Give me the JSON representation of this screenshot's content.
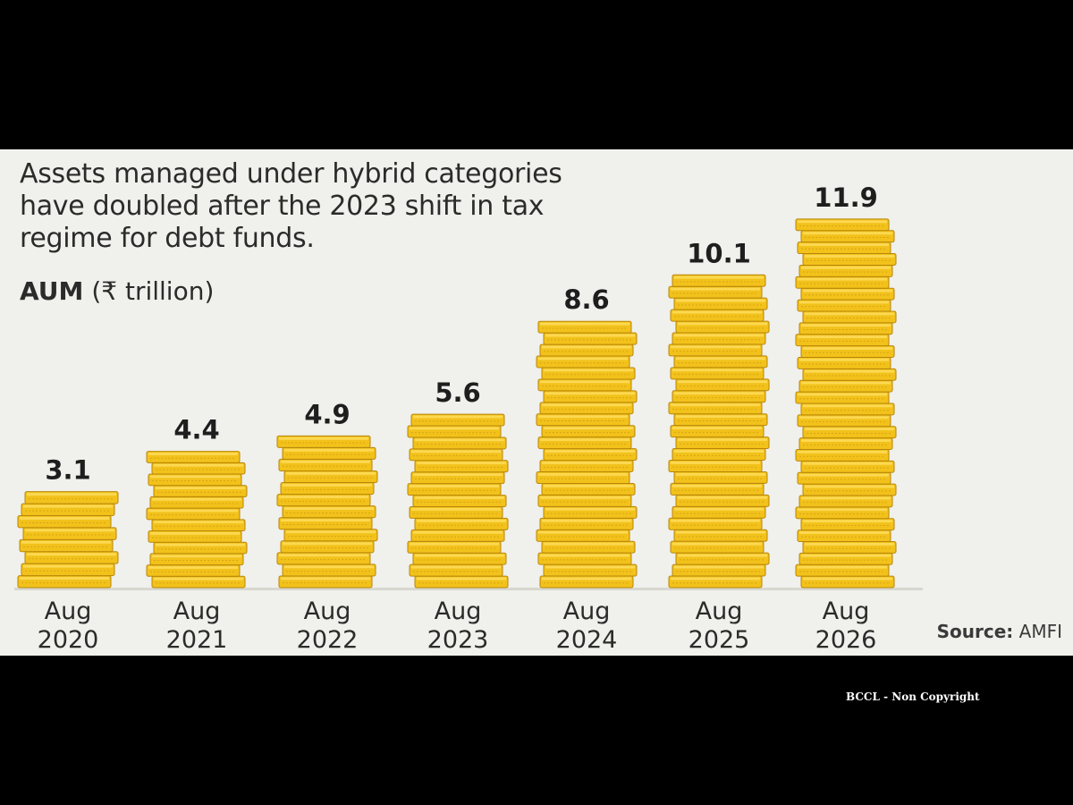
{
  "title": "Assets managed under hybrid categories have doubled after the 2023 shift in tax regime for debt funds.",
  "unit_label": {
    "bold": "AUM",
    "rest": " (₹ trillion)"
  },
  "source": {
    "label": "Source:",
    "value": " AMFI"
  },
  "watermark": "BCCL - Non Copyright",
  "colors": {
    "coin_face": "#f2c21b",
    "coin_edge": "#b8860b",
    "coin_highlight": "#ffe066",
    "text": "#2b2b2b",
    "background": "#f0f0ec",
    "frame": "#000000"
  },
  "chart_data": {
    "type": "bar",
    "mark_style": "coin-stacks",
    "categories": [
      [
        "Aug",
        "2020"
      ],
      [
        "Aug",
        "2021"
      ],
      [
        "Aug",
        "2022"
      ],
      [
        "Aug",
        "2023"
      ],
      [
        "Aug",
        "2024"
      ],
      [
        "Aug",
        "2025"
      ],
      [
        "Aug",
        "2026"
      ]
    ],
    "values": [
      3.1,
      4.4,
      4.9,
      5.6,
      8.6,
      10.1,
      11.9
    ],
    "data_labels": [
      "3.1",
      "4.4",
      "4.9",
      "5.6",
      "8.6",
      "10.1",
      "11.9"
    ],
    "ylim": [
      0,
      12.36
    ],
    "grid": false,
    "legend": "none"
  }
}
